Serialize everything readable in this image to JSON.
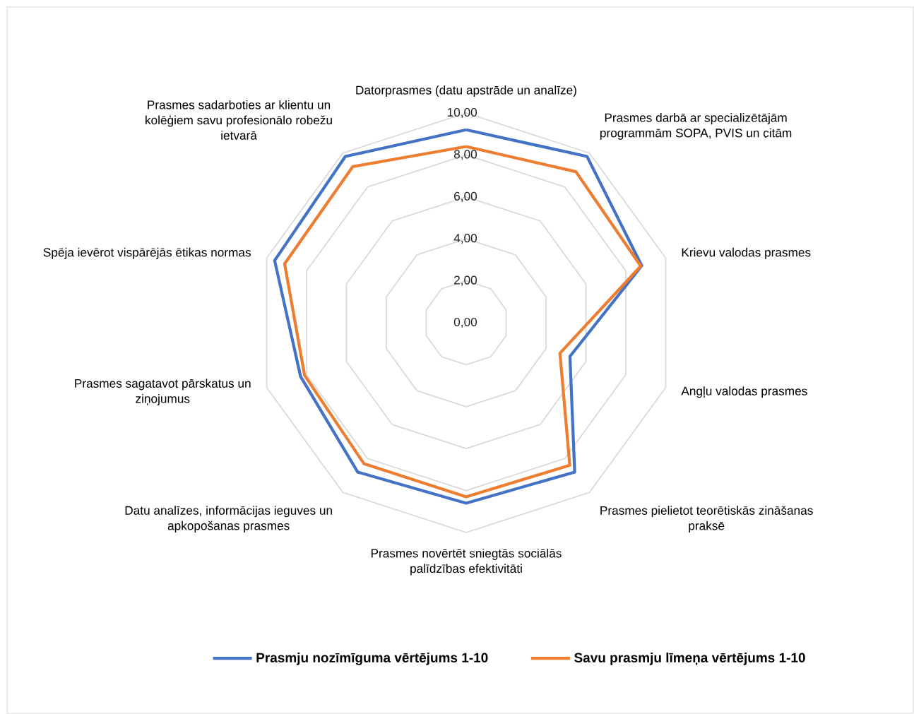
{
  "chart_data": {
    "type": "radar",
    "categories": [
      "Datorprasmes (datu apstrāde un analīze)",
      "Prasmes darbā ar specializētājām programmām SOPA, PVIS un citām",
      "Krievu valodas prasmes",
      "Angļu valodas prasmes",
      "Prasmes pielietot teorētiskās zināšanas praksē",
      "Prasmes novērtēt sniegtās sociālās palīdzības efektivitāti",
      "Datu analīzes, informācijas ieguves un apkopošanas prasmes",
      "Prasmes sagatavot pārskatus un ziņojumus",
      "Spēja ievērot vispārējās ētikas normas",
      "Prasmes sadarboties ar klientu un kolēģiem savu profesionālo robežu ietvarā"
    ],
    "series": [
      {
        "name": "Prasmju nozīmīguma vērtējums 1-10",
        "color": "#4472c4",
        "values": [
          9.2,
          9.8,
          8.8,
          5.2,
          8.8,
          8.6,
          8.8,
          8.3,
          9.6,
          9.8
        ]
      },
      {
        "name": "Savu prasmju līmeņa vērtējums 1-10",
        "color": "#ed7d31",
        "values": [
          8.4,
          8.9,
          8.75,
          4.7,
          8.4,
          8.3,
          8.3,
          8.1,
          9.1,
          9.2
        ]
      }
    ],
    "ylim": [
      0,
      10
    ],
    "yticks": [
      {
        "value": 0,
        "label": "0,00"
      },
      {
        "value": 2,
        "label": "2,00"
      },
      {
        "value": 4,
        "label": "4,00"
      },
      {
        "value": 6,
        "label": "6,00"
      },
      {
        "value": 8,
        "label": "8,00"
      },
      {
        "value": 10,
        "label": "10,00"
      }
    ],
    "grid": true,
    "legend": "bottom"
  }
}
